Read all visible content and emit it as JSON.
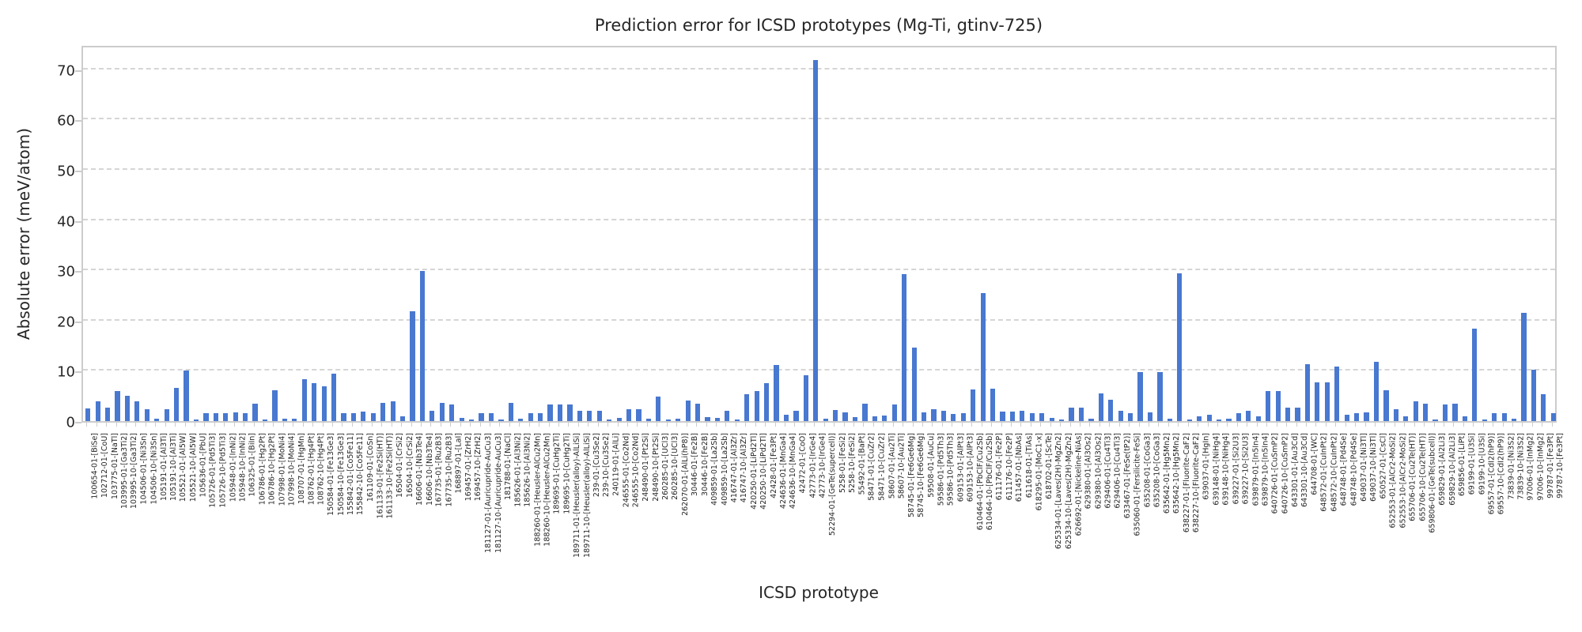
{
  "chart_data": {
    "type": "bar",
    "title": "Prediction error for ICSD prototypes (Mg-Ti, gtinv-725)",
    "xlabel": "ICSD prototype",
    "ylabel": "Absolute error (meV/atom)",
    "ylim": [
      0,
      75
    ],
    "yticks": [
      0,
      10,
      20,
      30,
      40,
      50,
      60,
      70
    ],
    "grid": "horizontal-dashed",
    "legend": "none",
    "bar_color": "#4878d0",
    "categories": [
      "100654-01-[BiSe]",
      "102712-01-[CoU]",
      "103775-01-[NaTl]",
      "103995-01-[Ga3Ti2]",
      "103995-10-[Ga3Ti2]",
      "104506-01-[Ni3Sn]",
      "104506-10-[Ni3Sn]",
      "105191-01-[Al3Ti]",
      "105191-10-[Al3Ti]",
      "105521-01-[Al5W]",
      "105521-10-[Al5W]",
      "105636-01-[PbU]",
      "105726-01-[Pd5Ti3]",
      "105726-10-[Pd5Ti3]",
      "105948-01-[InNi2]",
      "105948-10-[InNi2]",
      "106325-01-[BiIn]",
      "106786-01-[Hg2Pt]",
      "106786-10-[Hg2Pt]",
      "107998-01-[MoNi4]",
      "107998-10-[MoNi4]",
      "108707-01-[HgMn]",
      "108762-01-[Hg4Pt]",
      "108762-10-[Hg4Pt]",
      "150584-01-[Fe13Ge3]",
      "150584-10-[Fe13Ge3]",
      "155842-01-[Co5Fe11]",
      "155842-10-[Co5Fe11]",
      "161109-01-[CoSn]",
      "161133-01-[Fe2Si(HT)]",
      "161133-10-[Fe2Si(HT)]",
      "16504-01-[CrSi2]",
      "16504-10-[CrSi2]",
      "16606-01-[Nb3Te4]",
      "16606-10-[Nb3Te4]",
      "167735-01-[Ru2B3]",
      "167735-10-[Ru2B3]",
      "168897-01-[LaI]",
      "169457-01-[ZrH2]",
      "169457-10-[ZrH2]",
      "181127-01-[Auricupride-AuCu3]",
      "181127-10-[Auricupride-AuCu3]",
      "181788-01-[NaCl]",
      "185626-01-[Al3Ni2]",
      "185626-10-[Al3Ni2]",
      "188260-01-[Heusler-AlCu2Mn]",
      "188260-10-[Heusler-AlCu2Mn]",
      "189695-01-[CuHg2Ti]",
      "189695-10-[CuHg2Ti]",
      "189711-01-[Heusler(alloy)-AlLiSi]",
      "189711-10-[Heusler(alloy)-AlLiSi]",
      "239-01-[Cu3Se2]",
      "239-10-[Cu3Se2]",
      "240119-01-[AlLi]",
      "246555-01-[Co2Nd]",
      "246555-10-[Co2Nd]",
      "248490-01-[Pt2Si]",
      "248490-10-[Pt2Si]",
      "260285-01-[UCl3]",
      "260285-10-[UCl3]",
      "262070-01-[AlLi(hP8)]",
      "30446-01-[Fe2B]",
      "30446-10-[Fe2B]",
      "409859-01-[La2Sb]",
      "409859-10-[La2Sb]",
      "416747-01-[Al3Zr]",
      "416747-10-[Al3Zr]",
      "420250-01-[LiPd2Tl]",
      "420250-10-[LiPd2Tl]",
      "42428-01-[Fe3Pt]",
      "424636-01-[MnGa4]",
      "424636-10-[MnGa4]",
      "42472-01-[CoO]",
      "42773-01-[IrGe4]",
      "42773-10-[IrGe4]",
      "52294-01-[GeTe(supercell)]",
      "5258-01-[FeSi2]",
      "5258-10-[FeSi2]",
      "55492-01-[BaPt]",
      "58471-01-[CuZr2]",
      "58471-10-[CuZr2]",
      "58607-01-[Au2Ti]",
      "58607-10-[Au2Ti]",
      "58745-01-[Fe6Ge6Mg]",
      "58745-10-[Fe6Ge6Mg]",
      "59508-01-[AuCu]",
      "59586-01-[Pd5Th3]",
      "59586-10-[Pd5Th3]",
      "609153-01-[AlPt3]",
      "609153-10-[AlPt3]",
      "610464-01-[PbClF/Cu2Sb]",
      "610464-10-[PbClF/Cu2Sb]",
      "611176-01-[Fe2P]",
      "611176-10-[Fe2P]",
      "611457-01-[NbAs]",
      "611618-01-[TiAs]",
      "618295-01-[MoC1-x]",
      "618702-01-[ScTe]",
      "625334-01-[Laves(2H)-MgZn2]",
      "625334-10-[Laves(2H)-MgZn2]",
      "626692-01-[Nickeline-NiAs]",
      "629380-01-[Al3Os2]",
      "629380-10-[Al3Os2]",
      "629406-01-[Cu4Ti3]",
      "629406-10-[Cu4Ti3]",
      "633467-01-[FeSe(tP2)]",
      "635060-01-[Fersilicite-FeSi]",
      "635208-01-[CoGa3]",
      "635208-10-[CoGa3]",
      "635642-01-[Hg5Mn2]",
      "635642-10-[Hg5Mn2]",
      "638227-01-[Fluorite-CaF2]",
      "638227-10-[Fluorite-CaF2]",
      "639037-01-[HgIn]",
      "639148-01-[NiHg4]",
      "639148-10-[NiHg4]",
      "639227-01-[Si2U3]",
      "639227-10-[Si2U3]",
      "639879-01-[In5In4]",
      "639879-10-[In5In4]",
      "640726-01-[CuSmP2]",
      "640726-10-[CuSmP2]",
      "643301-01-[Au3Cd]",
      "643301-10-[Au3Cd]",
      "644708-01-[WC]",
      "648572-01-[CuInPt2]",
      "648572-10-[CuInPt2]",
      "648748-01-[Pd4Se]",
      "648748-10-[Pd4Se]",
      "649037-01-[Ni3Tl]",
      "649037-10-[Ni3Tl]",
      "650527-01-[CsCl]",
      "652553-01-[AlCr2-MoSi2]",
      "652553-10-[AlCr2-MoSi2]",
      "655706-01-[Cu2Te(HT)]",
      "655706-10-[Cu2Te(HT)]",
      "659806-01-[GeTe(subcell)]",
      "659829-01-[Al2Li3]",
      "659829-10-[Al2Li3]",
      "659856-01-[LiPt]",
      "69199-01-[U3Si]",
      "69199-10-[U3Si]",
      "69557-01-[CdI2(hP9)]",
      "69557-10-[CdI2(hP9)]",
      "73839-01-[Ni3S2]",
      "73839-10-[Ni3S2]",
      "97006-01-[InMg2]",
      "97006-10-[InMg2]",
      "99787-01-[Fe3Pt]",
      "99787-10-[Fe3Pt]"
    ],
    "values": [
      2.5,
      4.0,
      2.6,
      6.0,
      5.1,
      3.9,
      2.4,
      0.5,
      2.3,
      6.6,
      10.0,
      0.3,
      1.5,
      1.5,
      1.5,
      1.7,
      1.5,
      3.5,
      0.3,
      6.2,
      0.4,
      0.4,
      8.4,
      7.6,
      6.9,
      9.4,
      1.6,
      1.6,
      1.9,
      1.6,
      3.6,
      3.9,
      0.9,
      21.9,
      29.8,
      2.0,
      3.6,
      3.3,
      0.6,
      0.3,
      1.5,
      1.5,
      0.3,
      3.6,
      0.4,
      1.5,
      1.5,
      3.3,
      3.3,
      3.3,
      2.0,
      2.0,
      2.1,
      0.3,
      0.6,
      2.3,
      2.4,
      0.5,
      4.8,
      0.3,
      0.4,
      4.1,
      3.5,
      0.8,
      0.7,
      2.0,
      0.3,
      5.3,
      5.9,
      7.6,
      11.2,
      1.2,
      2.0,
      9.2,
      71.8,
      0.4,
      2.2,
      1.7,
      0.8,
      3.5,
      1.0,
      1.1,
      3.3,
      29.3,
      14.7,
      1.7,
      2.4,
      2.1,
      1.4,
      1.5,
      6.3,
      25.4,
      6.5,
      1.9,
      1.9,
      2.1,
      1.5,
      1.6,
      0.7,
      0.3,
      2.7,
      2.6,
      0.4,
      5.5,
      4.3,
      2.1,
      1.6,
      9.7,
      1.7,
      9.8,
      0.4,
      29.4,
      0.3,
      0.9,
      1.2,
      0.3,
      0.5,
      1.5,
      2.0,
      0.9,
      6.0,
      5.9,
      2.7,
      2.7,
      11.4,
      7.7,
      7.7,
      10.9,
      1.2,
      1.5,
      1.7,
      11.8,
      6.1,
      2.4,
      0.9,
      3.9,
      3.4,
      0.3,
      3.3,
      3.4,
      0.9,
      18.4,
      0.3,
      1.5,
      1.6,
      0.5,
      21.5,
      10.2,
      5.3,
      1.5
    ]
  }
}
